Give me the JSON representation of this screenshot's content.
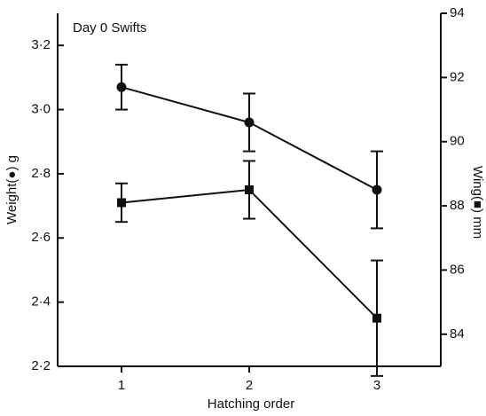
{
  "chart_data": {
    "type": "line",
    "title": "Day 0 Swifts",
    "x_label": "Hatching order",
    "y_label": "Weight(●) g",
    "y2_label": "Wing(■) mm",
    "x": [
      1,
      2,
      3
    ],
    "xlim": [
      0.5,
      3.5
    ],
    "xticks": [
      1,
      2,
      3
    ],
    "ylim": [
      2.2,
      3.3
    ],
    "yticks": [
      {
        "value": 2.2,
        "label": "2·2"
      },
      {
        "value": 2.4,
        "label": "2·4"
      },
      {
        "value": 2.6,
        "label": "2·6"
      },
      {
        "value": 2.8,
        "label": "2·8"
      },
      {
        "value": 3.0,
        "label": "3·0"
      },
      {
        "value": 3.2,
        "label": "3·2"
      }
    ],
    "y2lim": [
      83,
      94
    ],
    "y2ticks": [
      84,
      86,
      88,
      90,
      92,
      94
    ],
    "series": [
      {
        "marker": "circle",
        "color": "#111111",
        "values": [
          3.07,
          2.96,
          2.75
        ],
        "errors": [
          0.07,
          0.09,
          0.12
        ]
      },
      {
        "marker": "square",
        "color": "#111111",
        "axis": "y2",
        "values": [
          88.1,
          88.5,
          84.5
        ],
        "errors": [
          0.6,
          0.9,
          1.8
        ]
      }
    ]
  }
}
